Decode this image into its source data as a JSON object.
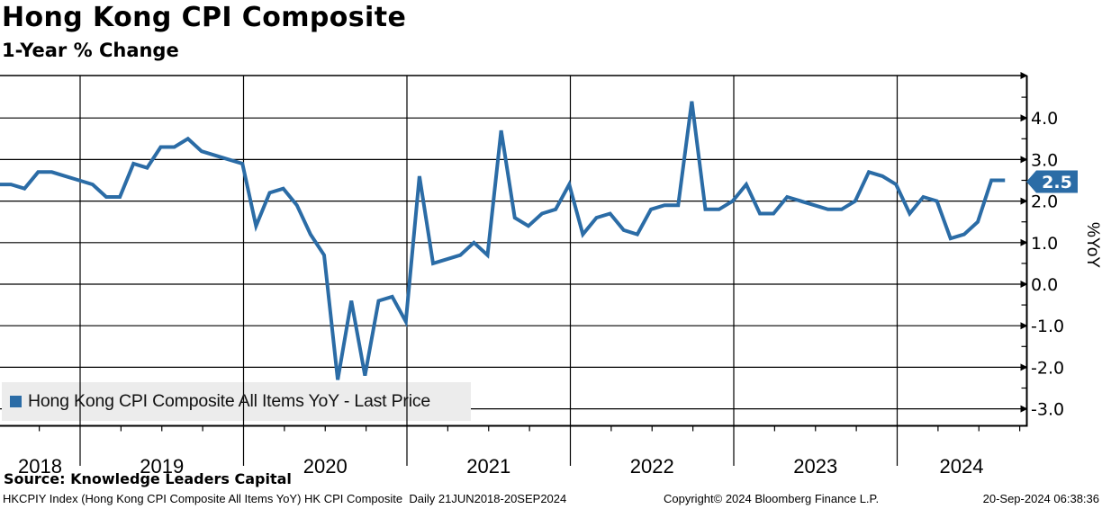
{
  "header": {
    "title": "Hong Kong CPI Composite",
    "subtitle": "1-Year % Change"
  },
  "legend": {
    "label": "Hong Kong CPI Composite All Items YoY - Last Price"
  },
  "source": {
    "text": "Source: Knowledge Leaders Capital"
  },
  "footer": {
    "left": "HKCPIY Index (Hong Kong CPI Composite All Items YoY) HK CPI Composite  Daily 21JUN2018-20SEP2024",
    "center": "Copyright© 2024 Bloomberg Finance L.P.",
    "right": "20-Sep-2024 06:38:36"
  },
  "colors": {
    "line": "#2b6ca6",
    "badge_bg": "#2b6ca6",
    "badge_text": "#ffffff",
    "legend_bg": "#ececec",
    "grid": "#000000",
    "background": "#ffffff"
  },
  "chart_data": {
    "type": "line",
    "title": "Hong Kong CPI Composite",
    "subtitle": "1-Year % Change",
    "xlabel": "",
    "ylabel": "%YoY",
    "ylim": [
      -3.4,
      5.0
    ],
    "grid": true,
    "legend_position": "bottom-left",
    "frequency": "monthly",
    "start_month": "2018-06",
    "end_month": "2024-08",
    "x_tick_labels": [
      "2018",
      "2019",
      "2020",
      "2021",
      "2022",
      "2023",
      "2024"
    ],
    "y_tick_labels": [
      "4.0",
      "3.0",
      "2.0",
      "1.0",
      "0.0",
      "-1.0",
      "-2.0",
      "-3.0"
    ],
    "y_minor_tick_step": 0.5,
    "last_price": "2.5",
    "series": [
      {
        "name": "Hong Kong CPI Composite All Items YoY - Last Price",
        "values": [
          2.4,
          2.4,
          2.3,
          2.7,
          2.7,
          2.6,
          2.5,
          2.4,
          2.1,
          2.1,
          2.9,
          2.8,
          3.3,
          3.3,
          3.5,
          3.2,
          3.1,
          3.0,
          2.9,
          1.4,
          2.2,
          2.3,
          1.9,
          1.2,
          0.7,
          -2.3,
          -0.4,
          -2.2,
          -0.4,
          -0.3,
          -0.9,
          2.6,
          0.5,
          0.6,
          0.7,
          1.0,
          0.7,
          3.7,
          1.6,
          1.4,
          1.7,
          1.8,
          2.4,
          1.2,
          1.6,
          1.7,
          1.3,
          1.2,
          1.8,
          1.9,
          1.9,
          4.4,
          1.8,
          1.8,
          2.0,
          2.4,
          1.7,
          1.7,
          2.1,
          2.0,
          1.9,
          1.8,
          1.8,
          2.0,
          2.7,
          2.6,
          2.4,
          1.7,
          2.1,
          2.0,
          1.1,
          1.2,
          1.5,
          2.5,
          2.5
        ]
      }
    ]
  }
}
